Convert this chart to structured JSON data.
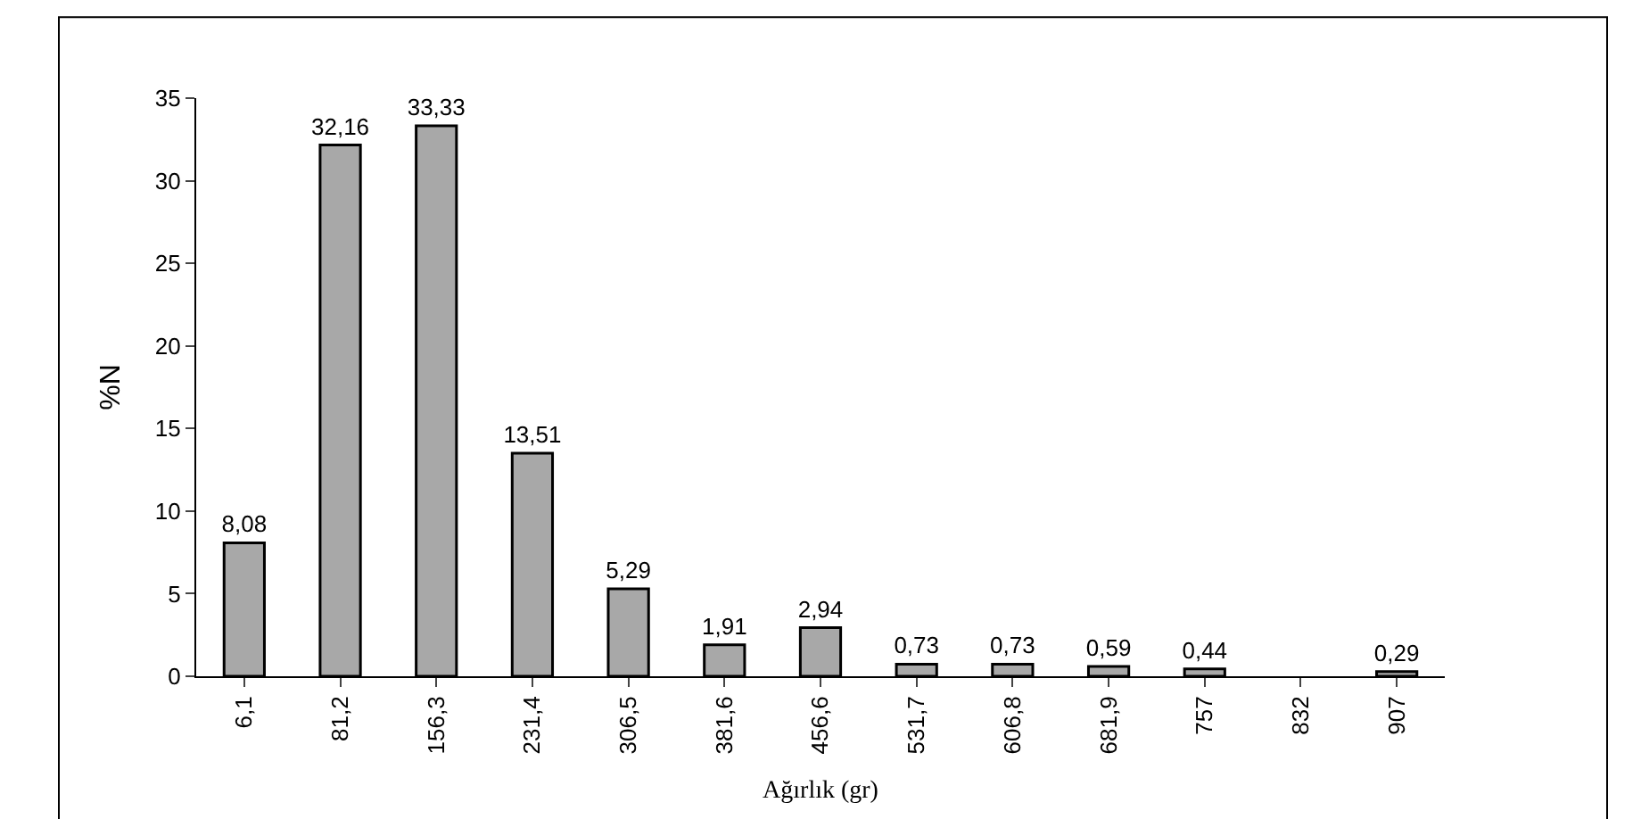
{
  "chart_data": {
    "type": "bar",
    "xlabel": "Ağırlık (gr)",
    "ylabel": "%N",
    "categories": [
      "6,1",
      "81,2",
      "156,3",
      "231,4",
      "306,5",
      "381,6",
      "456,6",
      "531,7",
      "606,8",
      "681,9",
      "757",
      "832",
      "907"
    ],
    "values": [
      8.08,
      32.16,
      33.33,
      13.51,
      5.29,
      1.91,
      2.94,
      0.73,
      0.73,
      0.59,
      0.44,
      null,
      0.29
    ],
    "value_labels": [
      "8,08",
      "32,16",
      "33,33",
      "13,51",
      "5,29",
      "1,91",
      "2,94",
      "0,73",
      "0,73",
      "0,59",
      "0,44",
      null,
      "0,29"
    ],
    "color": "#a8a8a8",
    "ylim": [
      0,
      35
    ],
    "yticks": [
      0,
      5,
      10,
      15,
      20,
      25,
      30,
      35
    ],
    "legend": false
  }
}
